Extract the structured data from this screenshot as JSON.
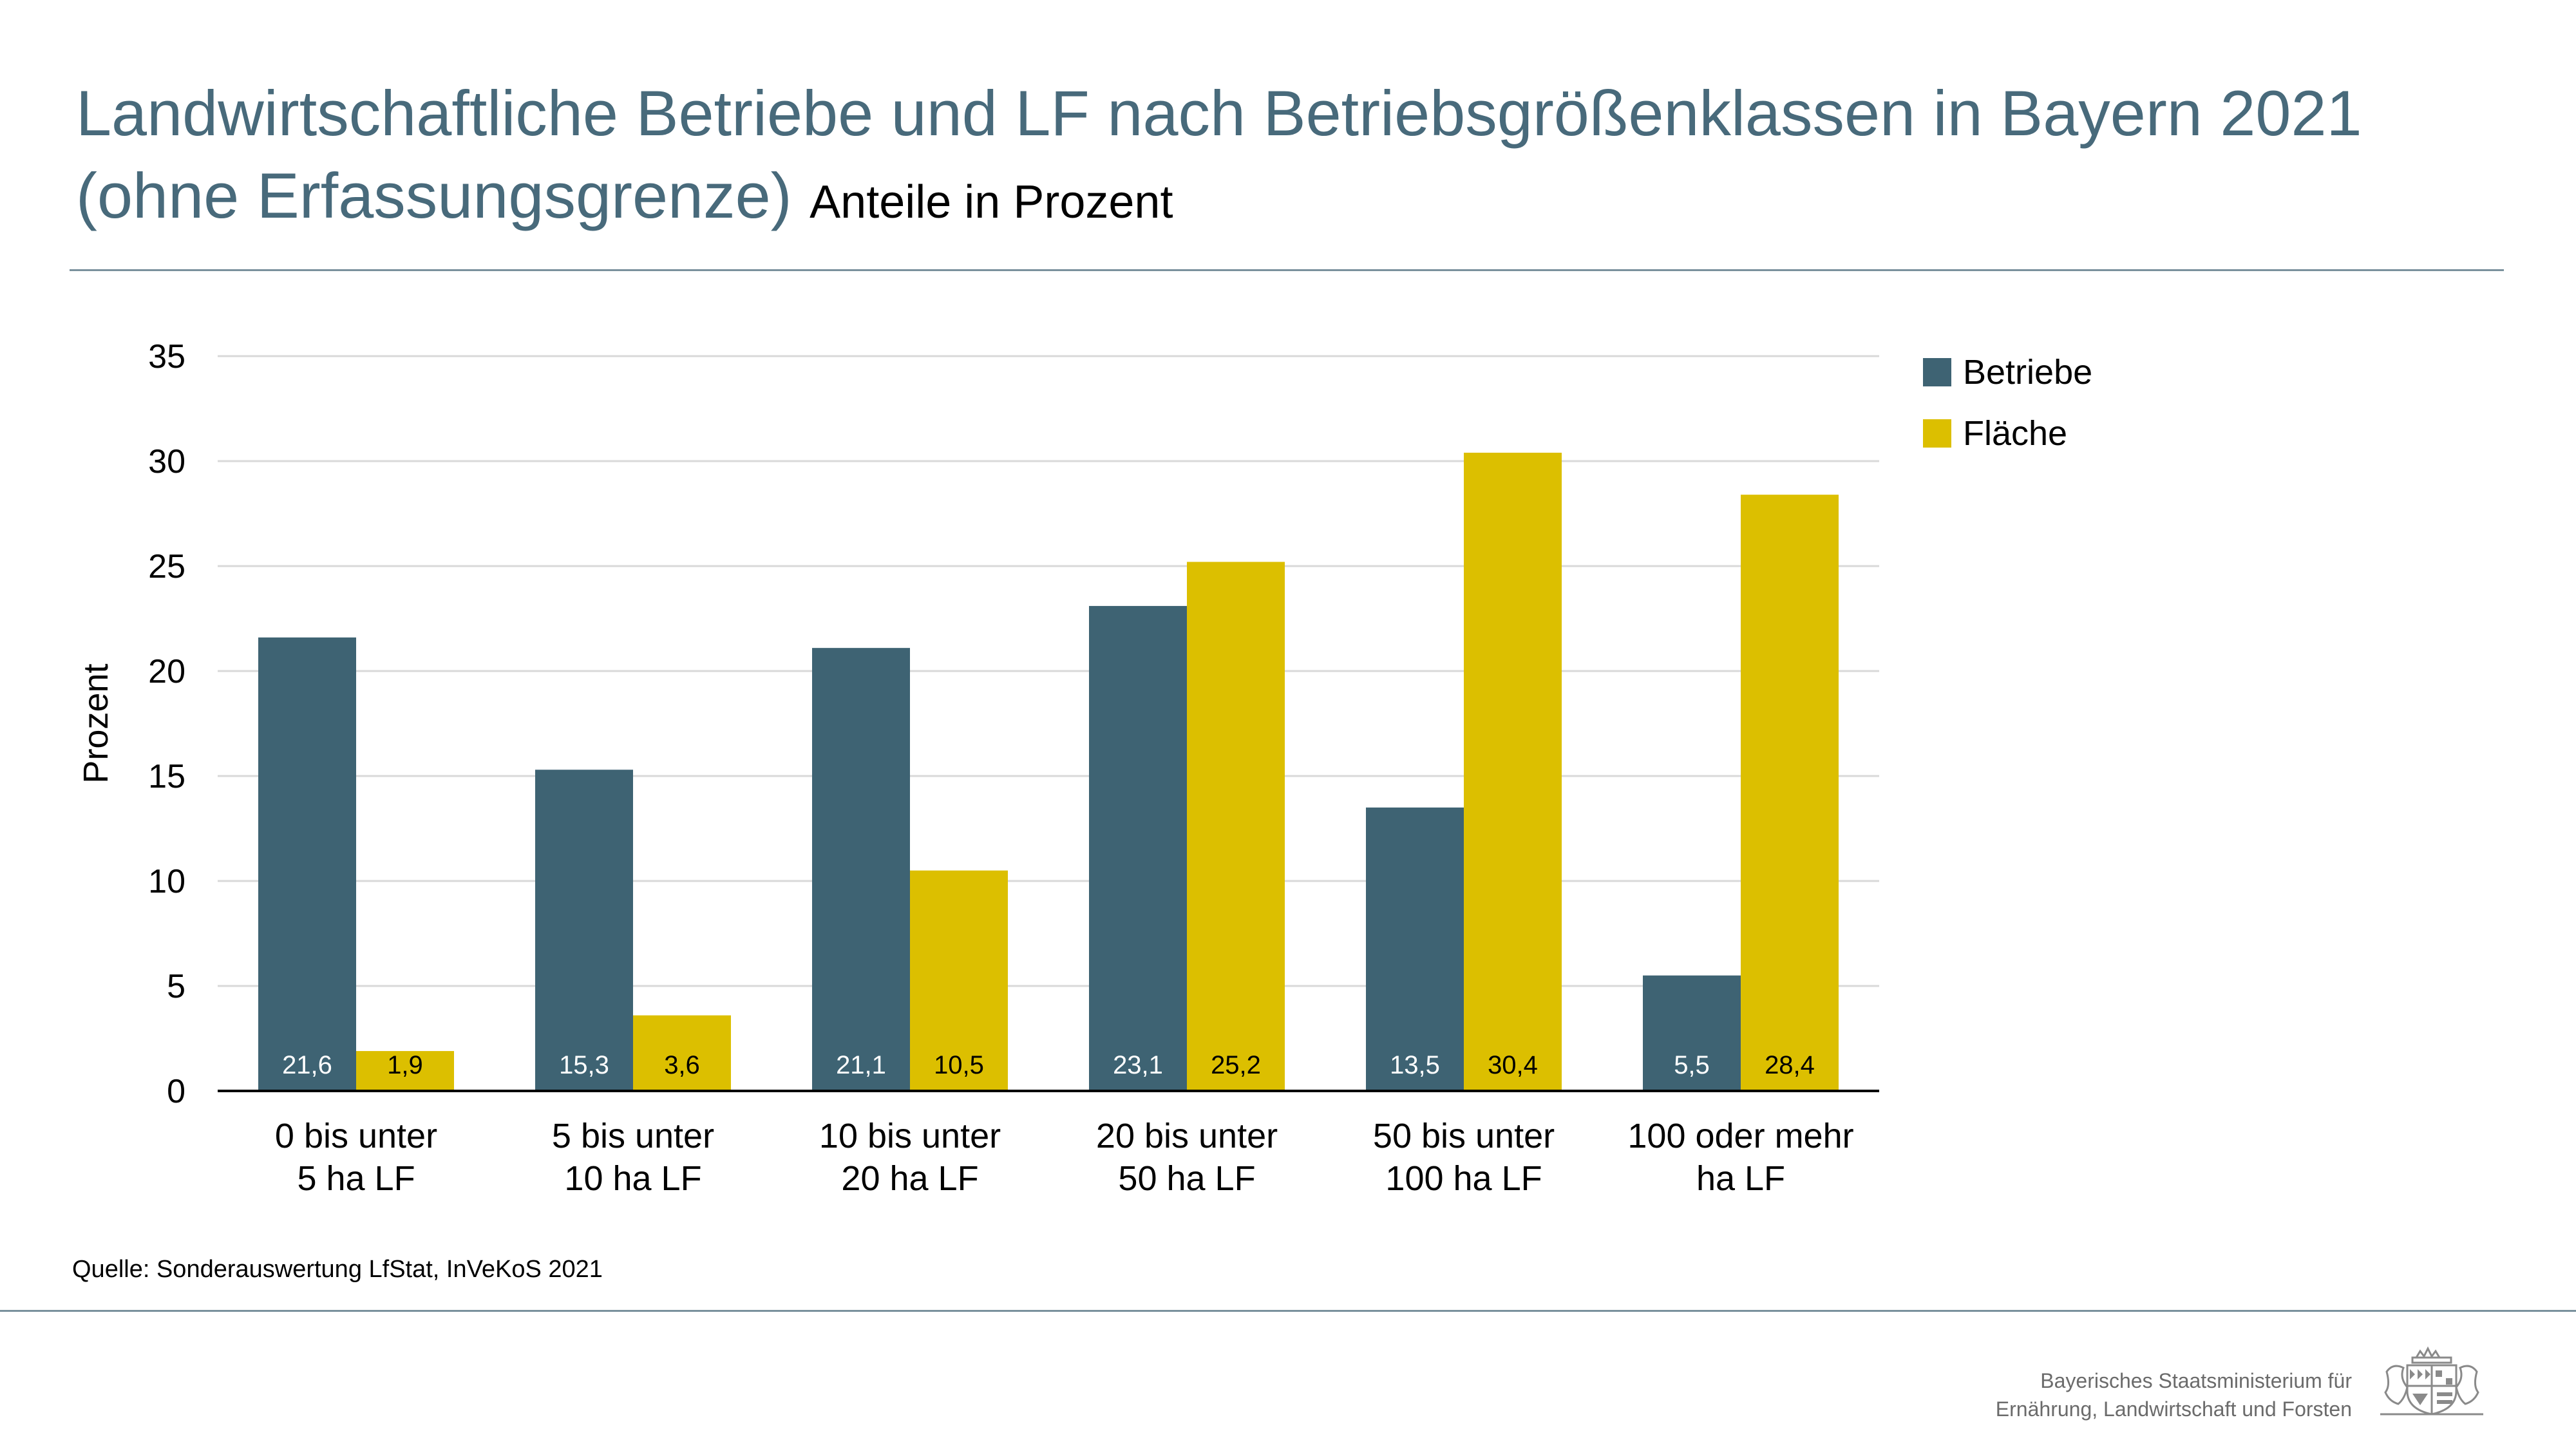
{
  "header": {
    "title_line1": "Landwirtschaftliche Betriebe und LF nach Betriebsgrößenklassen in Bayern 2021",
    "title_line2": "(ohne Erfassungsgrenze)",
    "subtitle": "Anteile in Prozent"
  },
  "chart_data": {
    "type": "bar",
    "ylabel": "Prozent",
    "xlabel": "",
    "ylim": [
      0,
      35
    ],
    "yticks": [
      0,
      5,
      10,
      15,
      20,
      25,
      30,
      35
    ],
    "grid": true,
    "legend_position": "right",
    "categories": [
      [
        "0 bis unter",
        "5 ha LF"
      ],
      [
        "5 bis unter",
        "10 ha LF"
      ],
      [
        "10 bis unter",
        "20 ha LF"
      ],
      [
        "20 bis unter",
        "50 ha LF"
      ],
      [
        "50 bis unter",
        "100 ha LF"
      ],
      [
        "100 oder mehr",
        "ha LF"
      ]
    ],
    "series": [
      {
        "name": "Betriebe",
        "color": "#3e6373",
        "values": [
          21.6,
          15.3,
          21.1,
          23.1,
          13.5,
          5.5
        ],
        "labels": [
          "21,6",
          "15,3",
          "21,1",
          "23,1",
          "13,5",
          "5,5"
        ]
      },
      {
        "name": "Fläche",
        "color": "#dcbf00",
        "values": [
          1.9,
          3.6,
          10.5,
          25.2,
          30.4,
          28.4
        ],
        "labels": [
          "1,9",
          "3,6",
          "10,5",
          "25,2",
          "30,4",
          "28,4"
        ]
      }
    ]
  },
  "footer": {
    "source": "Quelle: Sonderauswertung LfStat, InVeKoS 2021",
    "ministry_line1": "Bayerisches Staatsministerium für",
    "ministry_line2": "Ernährung, Landwirtschaft und Forsten"
  }
}
